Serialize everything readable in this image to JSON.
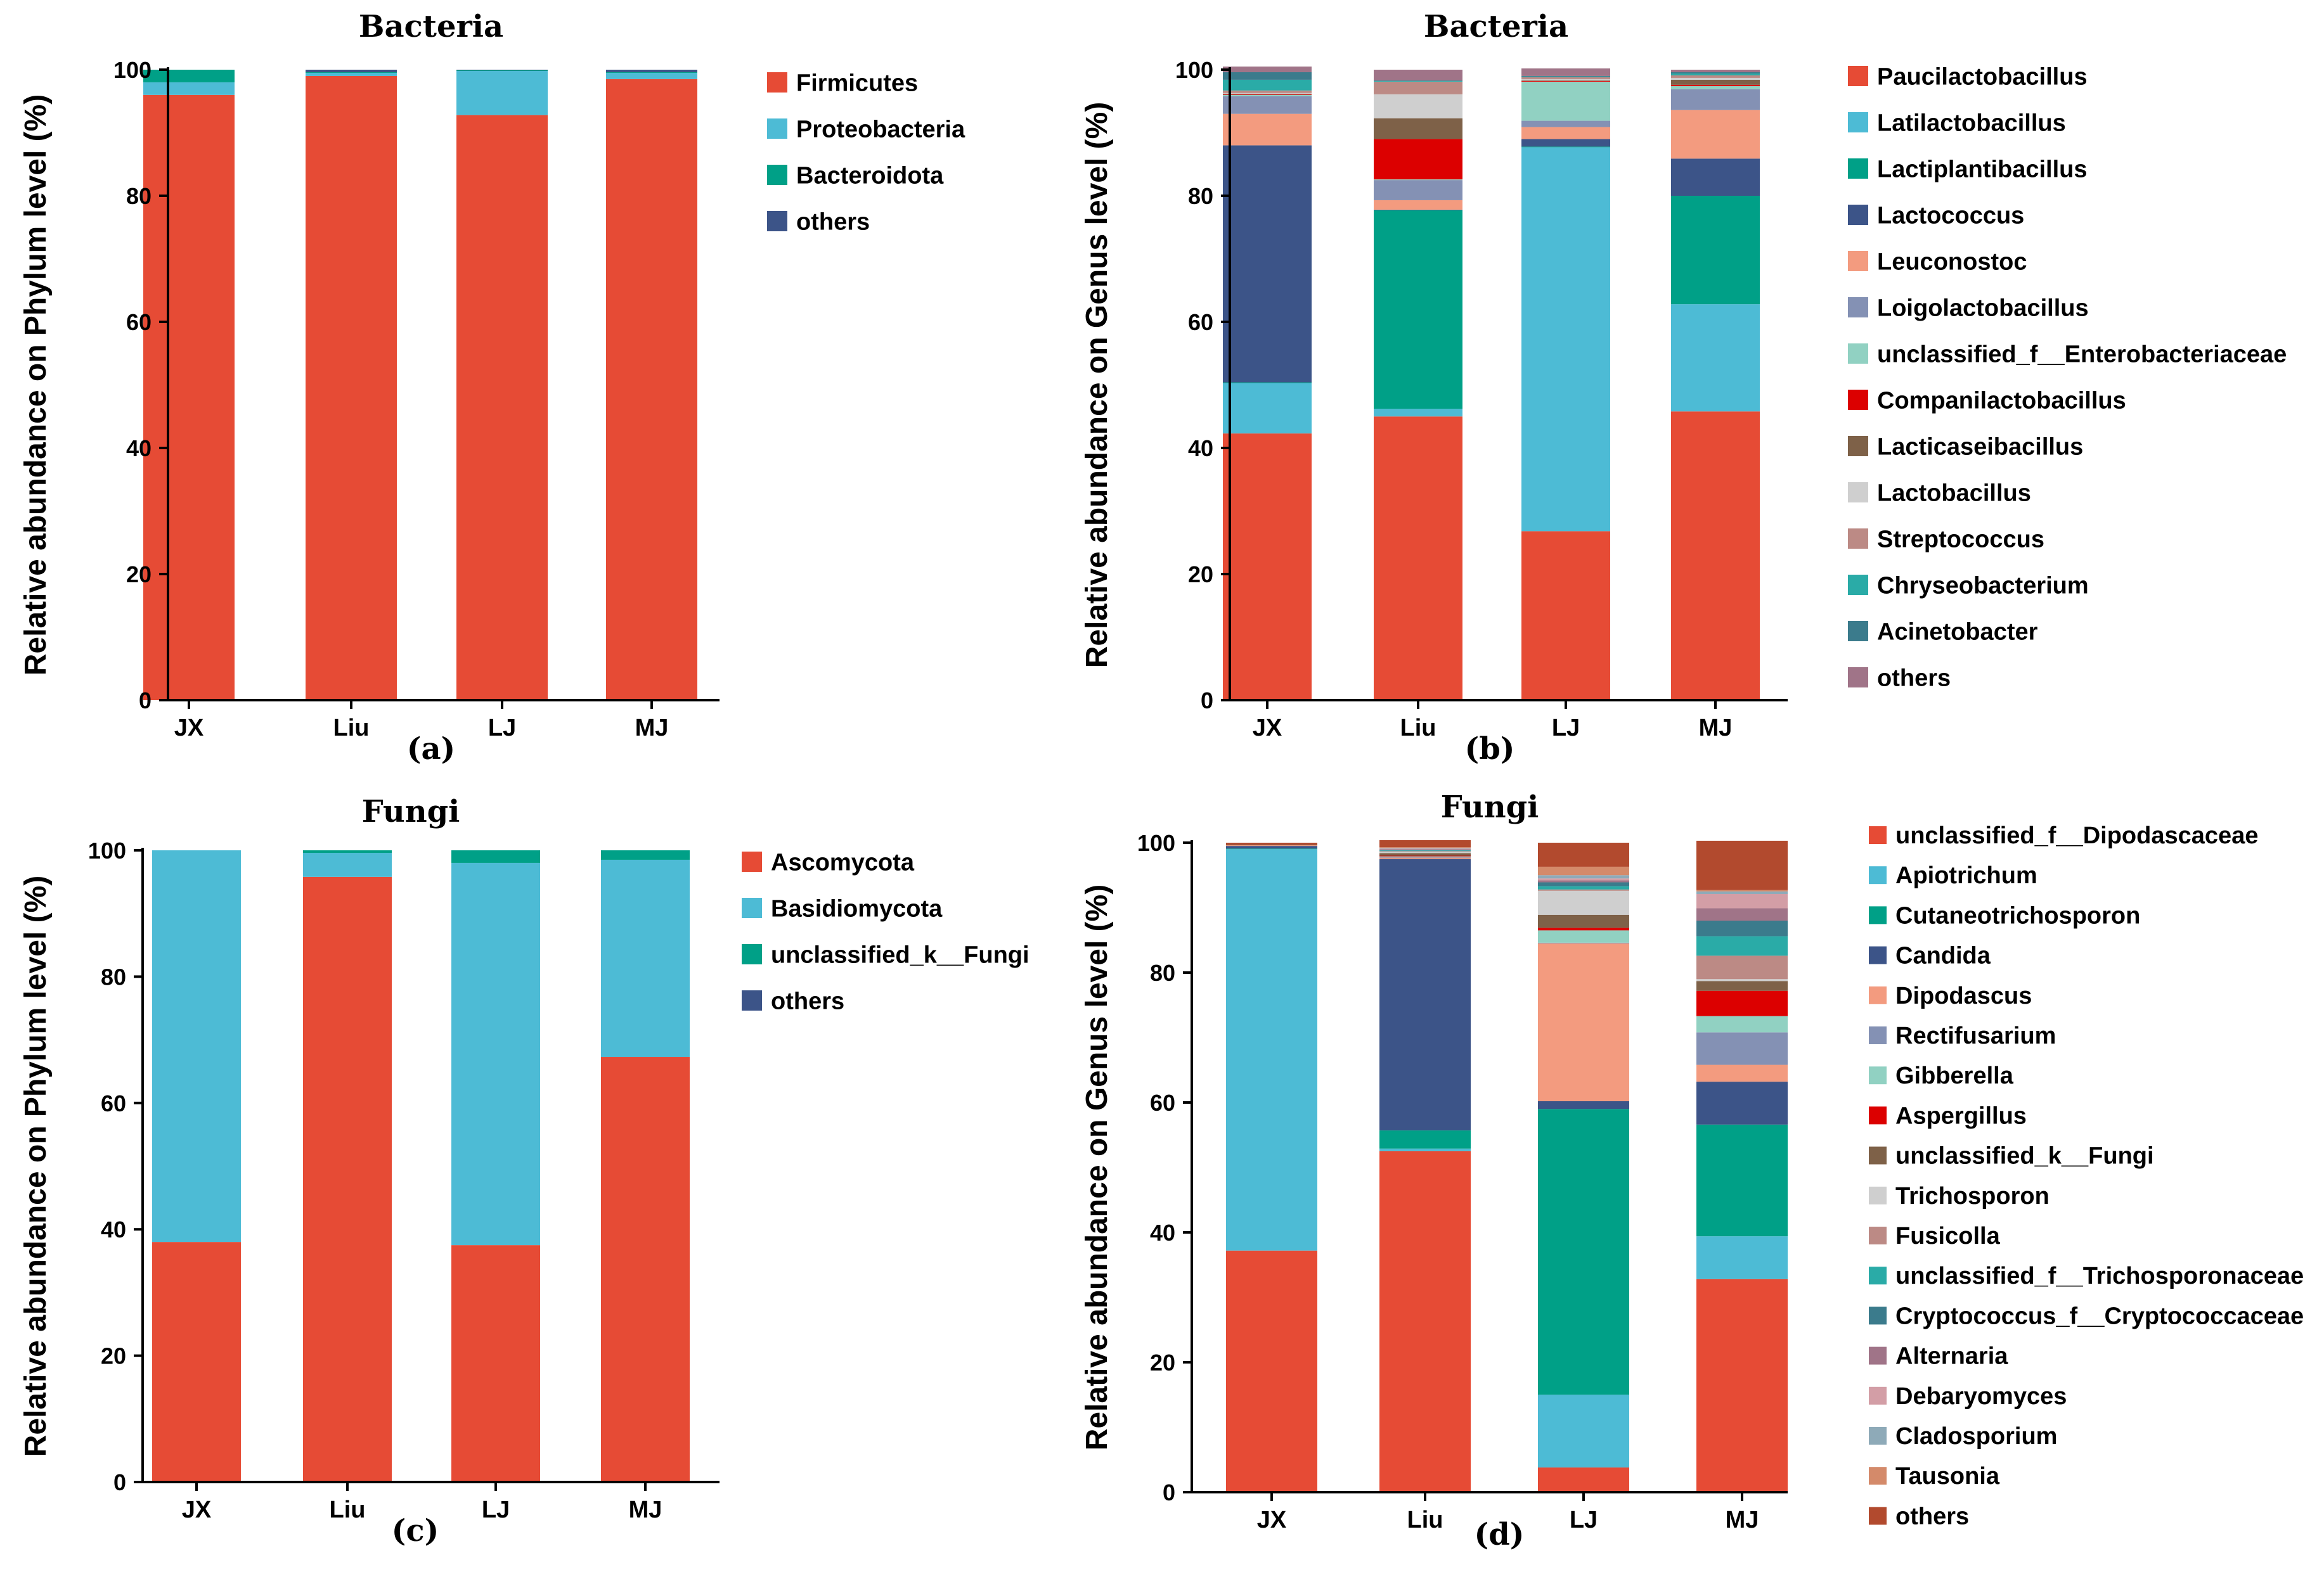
{
  "chart_data": [
    {
      "panel": "(a)",
      "type": "bar",
      "stacked": true,
      "title": "Bacteria",
      "ylabel": "Relative abundance on Phylum level (%)",
      "xlabel": "",
      "ylim": [
        0,
        100
      ],
      "yticks": [
        "0",
        "20",
        "40",
        "60",
        "80",
        "100"
      ],
      "categories": [
        "JX",
        "Liu",
        "LJ",
        "MJ"
      ],
      "series": [
        {
          "name": "Firmicutes",
          "color": "#E64B35",
          "values": [
            96.0,
            99.0,
            92.8,
            98.5
          ]
        },
        {
          "name": "Proteobacteria",
          "color": "#4DBBD5",
          "values": [
            2.0,
            0.5,
            7.0,
            1.0
          ]
        },
        {
          "name": "Bacteroidota",
          "color": "#00A087",
          "values": [
            2.0,
            0.1,
            0.1,
            0.1
          ]
        },
        {
          "name": "others",
          "color": "#3C5488",
          "values": [
            0.0,
            0.4,
            0.1,
            0.4
          ]
        }
      ]
    },
    {
      "panel": "(b)",
      "type": "bar",
      "stacked": true,
      "title": "Bacteria",
      "ylabel": "Relative abundance on Genus level (%)",
      "xlabel": "",
      "ylim": [
        0,
        100
      ],
      "yticks": [
        "0",
        "20",
        "40",
        "60",
        "80",
        "100"
      ],
      "categories": [
        "JX",
        "Liu",
        "LJ",
        "MJ"
      ],
      "series": [
        {
          "name": "Paucilactobacillus",
          "color": "#E64B35",
          "values": [
            42.3,
            45.0,
            26.8,
            45.8
          ]
        },
        {
          "name": "Latilactobacillus",
          "color": "#4DBBD5",
          "values": [
            8.0,
            1.2,
            60.9,
            17.0
          ]
        },
        {
          "name": "Lactiplantibacillus",
          "color": "#00A087",
          "values": [
            0.1,
            31.5,
            0.1,
            17.2
          ]
        },
        {
          "name": "Lactococcus",
          "color": "#3C5488",
          "values": [
            37.6,
            0.1,
            1.2,
            5.9
          ]
        },
        {
          "name": "Leuconostoc",
          "color": "#F39B7F",
          "values": [
            5.0,
            1.5,
            1.9,
            7.7
          ]
        },
        {
          "name": "Loigolactobacillus",
          "color": "#8491B4",
          "values": [
            2.8,
            3.2,
            1.0,
            3.3
          ]
        },
        {
          "name": "unclassified_f__Enterobacteriaceae",
          "color": "#91D1C2",
          "values": [
            0.2,
            0.1,
            6.2,
            0.5
          ]
        },
        {
          "name": "Companilactobacillus",
          "color": "#DC0000",
          "values": [
            0.1,
            6.4,
            0.1,
            0.2
          ]
        },
        {
          "name": "Lacticaseibacillus",
          "color": "#7E6148",
          "values": [
            0.1,
            3.3,
            0.1,
            0.8
          ]
        },
        {
          "name": "Lactobacillus",
          "color": "#CFCFCF",
          "values": [
            0.1,
            3.8,
            0.2,
            0.3
          ]
        },
        {
          "name": "Streptococcus",
          "color": "#BC8A85",
          "values": [
            0.4,
            2.0,
            0.3,
            0.4
          ]
        },
        {
          "name": "Chryseobacterium",
          "color": "#2AABA7",
          "values": [
            1.7,
            0.1,
            0.1,
            0.3
          ]
        },
        {
          "name": "Acinetobacter",
          "color": "#3B7B8C",
          "values": [
            1.2,
            0.1,
            0.1,
            0.2
          ]
        },
        {
          "name": "others",
          "color": "#A07488",
          "values": [
            0.9,
            1.7,
            1.2,
            0.4
          ]
        }
      ]
    },
    {
      "panel": "(c)",
      "type": "bar",
      "stacked": true,
      "title": "Fungi",
      "ylabel": "Relative abundance on Phylum level (%)",
      "xlabel": "",
      "ylim": [
        0,
        100
      ],
      "yticks": [
        "0",
        "20",
        "40",
        "60",
        "80",
        "100"
      ],
      "categories": [
        "JX",
        "Liu",
        "LJ",
        "MJ"
      ],
      "series": [
        {
          "name": "Ascomycota",
          "color": "#E64B35",
          "values": [
            38.0,
            95.8,
            37.5,
            67.3
          ]
        },
        {
          "name": "Basidiomycota",
          "color": "#4DBBD5",
          "values": [
            62.0,
            3.8,
            60.5,
            31.2
          ]
        },
        {
          "name": "unclassified_k__Fungi",
          "color": "#00A087",
          "values": [
            0.0,
            0.4,
            2.0,
            1.5
          ]
        },
        {
          "name": "others",
          "color": "#3C5488",
          "values": [
            0.0,
            0.0,
            0.0,
            0.0
          ]
        }
      ]
    },
    {
      "panel": "(d)",
      "type": "bar",
      "stacked": true,
      "title": "Fungi",
      "ylabel": "Relative abundance on Genus level (%)",
      "xlabel": "",
      "ylim": [
        0,
        100
      ],
      "yticks": [
        "0",
        "20",
        "40",
        "60",
        "80",
        "100"
      ],
      "categories": [
        "JX",
        "Liu",
        "LJ",
        "MJ"
      ],
      "series": [
        {
          "name": "unclassified_f__Dipodascaceae",
          "color": "#E64B35",
          "values": [
            37.2,
            52.5,
            3.8,
            32.8
          ]
        },
        {
          "name": "Apiotrichum",
          "color": "#4DBBD5",
          "values": [
            61.8,
            0.4,
            11.2,
            6.6
          ]
        },
        {
          "name": "Cutaneotrichosporon",
          "color": "#00A087",
          "values": [
            0.1,
            2.8,
            44.0,
            17.2
          ]
        },
        {
          "name": "Candida",
          "color": "#3C5488",
          "values": [
            0.4,
            41.8,
            1.2,
            6.6
          ]
        },
        {
          "name": "Dipodascus",
          "color": "#F39B7F",
          "values": [
            0.1,
            0.2,
            24.3,
            2.6
          ]
        },
        {
          "name": "Rectifusarium",
          "color": "#8491B4",
          "values": [
            0.0,
            0.1,
            0.1,
            5.0
          ]
        },
        {
          "name": "Gibberella",
          "color": "#91D1C2",
          "values": [
            0.0,
            0.1,
            1.9,
            2.5
          ]
        },
        {
          "name": "Aspergillus",
          "color": "#DC0000",
          "values": [
            0.0,
            0.1,
            0.4,
            3.9
          ]
        },
        {
          "name": "unclassified_k__Fungi",
          "color": "#7E6148",
          "values": [
            0.1,
            0.4,
            2.0,
            1.5
          ]
        },
        {
          "name": "Trichosporon",
          "color": "#CFCFCF",
          "values": [
            0.0,
            0.2,
            3.7,
            0.3
          ]
        },
        {
          "name": "Fusicolla",
          "color": "#BC8A85",
          "values": [
            0.0,
            0.1,
            0.2,
            3.6
          ]
        },
        {
          "name": "unclassified_f__Trichosporonaceae",
          "color": "#2AABA7",
          "values": [
            0.0,
            0.1,
            0.5,
            3.0
          ]
        },
        {
          "name": "Cryptococcus_f__Cryptococcaceae",
          "color": "#3B7B8C",
          "values": [
            0.0,
            0.1,
            0.6,
            2.4
          ]
        },
        {
          "name": "Alternaria",
          "color": "#A07488",
          "values": [
            0.0,
            0.1,
            0.3,
            1.9
          ]
        },
        {
          "name": "Debaryomyces",
          "color": "#D39EA6",
          "values": [
            0.0,
            0.1,
            0.3,
            2.2
          ]
        },
        {
          "name": "Cladosporium",
          "color": "#8EAAB8",
          "values": [
            0.0,
            0.1,
            0.5,
            0.4
          ]
        },
        {
          "name": "Tausonia",
          "color": "#D48A6A",
          "values": [
            0.0,
            0.1,
            1.3,
            0.2
          ]
        },
        {
          "name": "others",
          "color": "#B24A2E",
          "values": [
            0.3,
            1.1,
            3.7,
            7.6
          ]
        }
      ]
    }
  ]
}
